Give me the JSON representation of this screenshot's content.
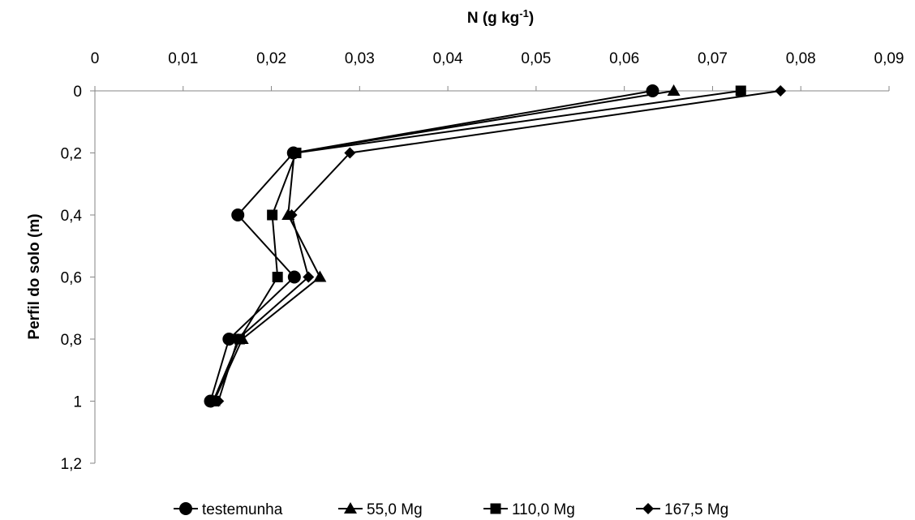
{
  "chart_data": {
    "type": "line",
    "orientation": "depth-profile",
    "title": "",
    "xlabel": "N (g kg",
    "xlabel_superscript": "-1",
    "xlabel_suffix": ")",
    "ylabel": "Perfil do solo (m)",
    "xlim": [
      0,
      0.09
    ],
    "ylim": [
      0,
      1.2
    ],
    "y_inverted": true,
    "x_axis_position": "top",
    "x_ticks": [
      "0",
      "0,01",
      "0,02",
      "0,03",
      "0,04",
      "0,05",
      "0,06",
      "0,07",
      "0,08",
      "0,09"
    ],
    "x_tick_values": [
      0,
      0.01,
      0.02,
      0.03,
      0.04,
      0.05,
      0.06,
      0.07,
      0.08,
      0.09
    ],
    "y_ticks": [
      "0",
      "0,2",
      "0,4",
      "0,6",
      "0,8",
      "1",
      "1,2"
    ],
    "y_tick_values": [
      0,
      0.2,
      0.4,
      0.6,
      0.8,
      1.0,
      1.2
    ],
    "grid": false,
    "legend_position": "bottom",
    "series": [
      {
        "name": "testemunha",
        "marker": "circle",
        "x": [
          0.0632,
          0.0225,
          0.0162,
          0.0226,
          0.0152,
          0.0131
        ],
        "y": [
          0,
          0.2,
          0.4,
          0.6,
          0.8,
          1.0
        ]
      },
      {
        "name": "55,0 Mg",
        "marker": "triangle",
        "x": [
          0.0656,
          0.0226,
          0.0219,
          0.0255,
          0.0167,
          0.0135
        ],
        "y": [
          0,
          0.2,
          0.4,
          0.6,
          0.8,
          1.0
        ]
      },
      {
        "name": "110,0 Mg",
        "marker": "square",
        "x": [
          0.0732,
          0.0228,
          0.0201,
          0.0207,
          0.0164,
          0.0134
        ],
        "y": [
          0,
          0.2,
          0.4,
          0.6,
          0.8,
          1.0
        ]
      },
      {
        "name": "167,5 Mg",
        "marker": "diamond",
        "x": [
          0.0777,
          0.0289,
          0.0223,
          0.0242,
          0.0162,
          0.014
        ],
        "y": [
          0,
          0.2,
          0.4,
          0.6,
          0.8,
          1.0
        ]
      }
    ],
    "colors": {
      "series": "#000000",
      "axis": "#868686"
    }
  }
}
